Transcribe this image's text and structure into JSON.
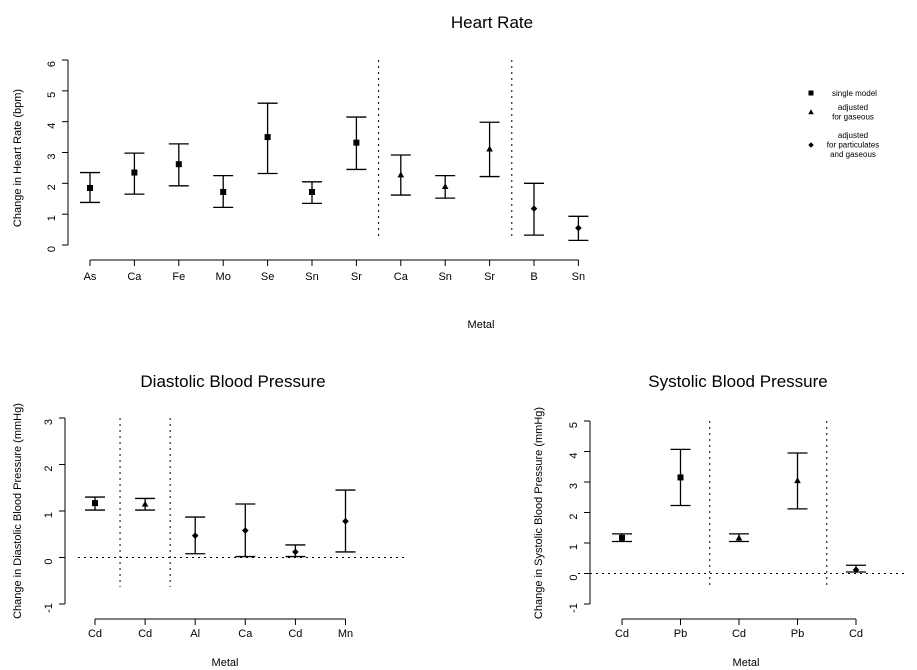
{
  "chart_data": [
    {
      "type": "scatter",
      "title": "Heart Rate",
      "xlabel": "Metal",
      "ylabel": "Change in Heart Rate (bpm)",
      "ylim": [
        0,
        6
      ],
      "yticks": [
        0,
        1,
        2,
        3,
        4,
        5,
        6
      ],
      "categories": [
        "As",
        "Ca",
        "Fe",
        "Mo",
        "Se",
        "Sn",
        "Sr",
        "Ca",
        "Sn",
        "Sr",
        "B",
        "Sn"
      ],
      "series": [
        {
          "name": "single model",
          "marker": "square",
          "points": [
            {
              "category_index": 0,
              "label": "As",
              "estimate": 1.85,
              "lower": 1.38,
              "upper": 2.35
            },
            {
              "category_index": 1,
              "label": "Ca",
              "estimate": 2.35,
              "lower": 1.65,
              "upper": 2.98
            },
            {
              "category_index": 2,
              "label": "Fe",
              "estimate": 2.62,
              "lower": 1.92,
              "upper": 3.28
            },
            {
              "category_index": 3,
              "label": "Mo",
              "estimate": 1.72,
              "lower": 1.22,
              "upper": 2.25
            },
            {
              "category_index": 4,
              "label": "Se",
              "estimate": 3.5,
              "lower": 2.32,
              "upper": 4.6
            },
            {
              "category_index": 5,
              "label": "Sn",
              "estimate": 1.72,
              "lower": 1.35,
              "upper": 2.05
            },
            {
              "category_index": 6,
              "label": "Sr",
              "estimate": 3.32,
              "lower": 2.45,
              "upper": 4.15
            }
          ]
        },
        {
          "name": "adjusted for gaseous",
          "marker": "triangle",
          "points": [
            {
              "category_index": 7,
              "label": "Ca",
              "estimate": 2.28,
              "lower": 1.62,
              "upper": 2.92
            },
            {
              "category_index": 8,
              "label": "Sn",
              "estimate": 1.9,
              "lower": 1.52,
              "upper": 2.25
            },
            {
              "category_index": 9,
              "label": "Sr",
              "estimate": 3.12,
              "lower": 2.22,
              "upper": 3.98
            }
          ]
        },
        {
          "name": "adjusted for particulates and gaseous",
          "marker": "diamond",
          "points": [
            {
              "category_index": 10,
              "label": "B",
              "estimate": 1.18,
              "lower": 0.32,
              "upper": 2.0
            },
            {
              "category_index": 11,
              "label": "Sn",
              "estimate": 0.55,
              "lower": 0.15,
              "upper": 0.93
            }
          ]
        }
      ],
      "separators_after_index": [
        6,
        9
      ],
      "legend": {
        "placement": "right",
        "entries": [
          {
            "marker": "square",
            "lines": [
              "single model"
            ]
          },
          {
            "marker": "triangle",
            "lines": [
              "adjusted",
              "for gaseous"
            ]
          },
          {
            "marker": "diamond",
            "lines": [
              "adjusted",
              "for particulates",
              "and gaseous"
            ]
          }
        ]
      },
      "zero_reference_line": false
    },
    {
      "type": "scatter",
      "title": "Diastolic Blood Pressure",
      "xlabel": "Metal",
      "ylabel": "Change in Diastolic Blood Pressure (mmHg)",
      "ylim": [
        -1,
        3
      ],
      "yticks": [
        -1,
        0,
        1,
        2,
        3
      ],
      "categories": [
        "Cd",
        "Cd",
        "Al",
        "Ca",
        "Cd",
        "Mn"
      ],
      "series": [
        {
          "marker": "square",
          "points": [
            {
              "category_index": 0,
              "label": "Cd",
              "estimate": 1.17,
              "lower": 1.02,
              "upper": 1.3
            }
          ]
        },
        {
          "marker": "triangle",
          "points": [
            {
              "category_index": 1,
              "label": "Cd",
              "estimate": 1.15,
              "lower": 1.02,
              "upper": 1.27
            }
          ]
        },
        {
          "marker": "diamond",
          "points": [
            {
              "category_index": 2,
              "label": "Al",
              "estimate": 0.47,
              "lower": 0.08,
              "upper": 0.87
            },
            {
              "category_index": 3,
              "label": "Ca",
              "estimate": 0.58,
              "lower": 0.02,
              "upper": 1.15
            },
            {
              "category_index": 4,
              "label": "Cd",
              "estimate": 0.12,
              "lower": 0.02,
              "upper": 0.27
            },
            {
              "category_index": 5,
              "label": "Mn",
              "estimate": 0.78,
              "lower": 0.12,
              "upper": 1.45
            }
          ]
        }
      ],
      "separators_after_index": [
        0,
        1
      ],
      "zero_reference_line": true
    },
    {
      "type": "scatter",
      "title": "Systolic Blood Pressure",
      "xlabel": "Metal",
      "ylabel": "Change in Systolic Blood Pressure (mmHg)",
      "ylim": [
        -1,
        5
      ],
      "yticks": [
        -1,
        0,
        1,
        2,
        3,
        4,
        5
      ],
      "categories": [
        "Cd",
        "Pb",
        "Cd",
        "Pb",
        "Cd"
      ],
      "series": [
        {
          "marker": "square",
          "points": [
            {
              "category_index": 0,
              "label": "Cd",
              "estimate": 1.17,
              "lower": 1.05,
              "upper": 1.3
            },
            {
              "category_index": 1,
              "label": "Pb",
              "estimate": 3.15,
              "lower": 2.23,
              "upper": 4.07
            }
          ]
        },
        {
          "marker": "triangle",
          "points": [
            {
              "category_index": 2,
              "label": "Cd",
              "estimate": 1.17,
              "lower": 1.05,
              "upper": 1.3
            },
            {
              "category_index": 3,
              "label": "Pb",
              "estimate": 3.05,
              "lower": 2.12,
              "upper": 3.95
            }
          ]
        },
        {
          "marker": "diamond",
          "points": [
            {
              "category_index": 4,
              "label": "Cd",
              "estimate": 0.12,
              "lower": 0.05,
              "upper": 0.27
            }
          ]
        }
      ],
      "separators_after_index": [
        1,
        3
      ],
      "zero_reference_line": true
    }
  ]
}
